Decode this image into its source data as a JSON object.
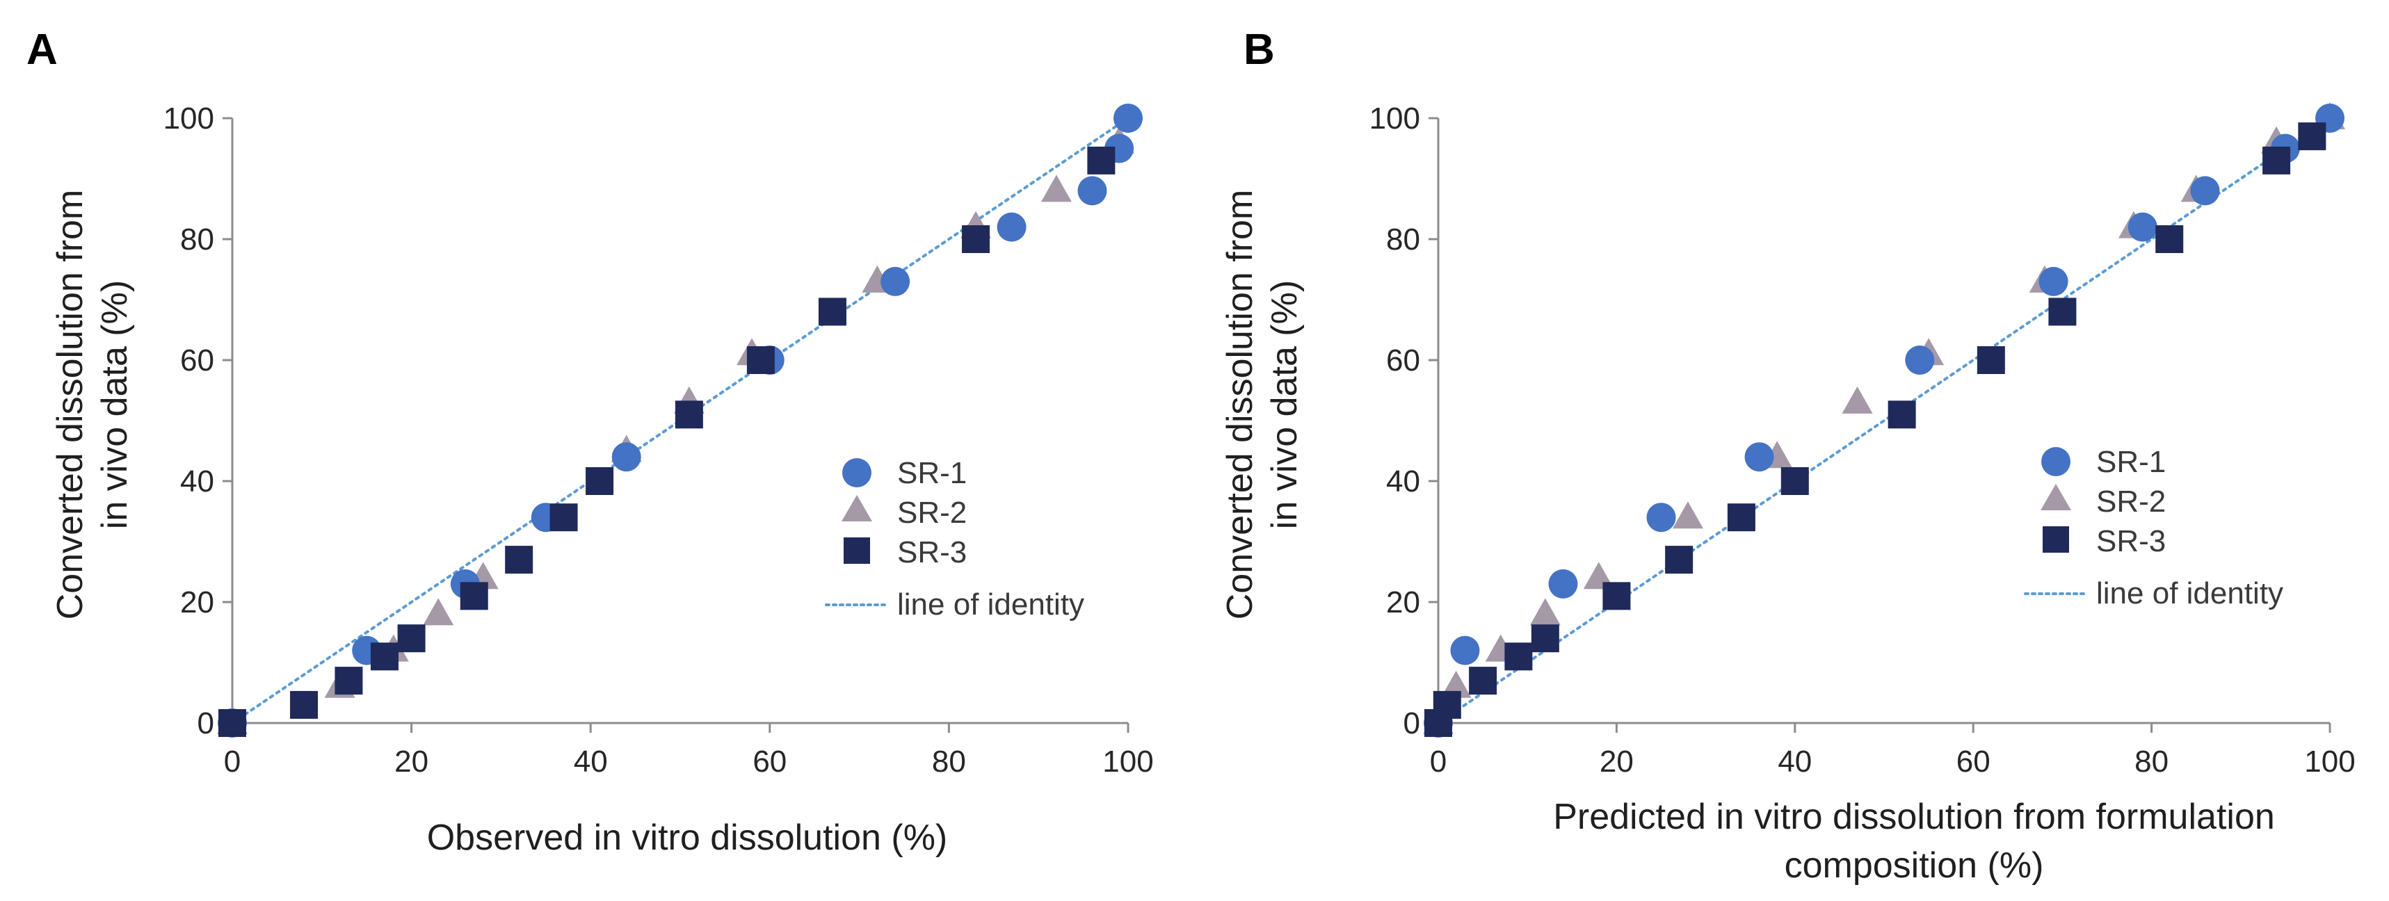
{
  "colors": {
    "sr1": "#4472c4",
    "sr2": "#a599a7",
    "sr3": "#1f2a5a",
    "identity": "#5b9bd5",
    "axis": "#8c8c8c"
  },
  "legend": {
    "items": [
      "SR-1",
      "SR-2",
      "SR-3",
      "line of identity"
    ]
  },
  "panels": [
    {
      "letter": "A",
      "chart_data": {
        "type": "scatter",
        "title": "",
        "xlabel": [
          "Observed in vitro dissolution (%)"
        ],
        "ylabel": [
          "Converted dissolution from",
          "in vivo data (%)"
        ],
        "xlim": [
          0,
          100
        ],
        "ylim": [
          0,
          100
        ],
        "xticks": [
          0,
          20,
          40,
          60,
          80,
          100
        ],
        "yticks": [
          0,
          20,
          40,
          60,
          80,
          100
        ],
        "legend_position": "right-middle",
        "grid": false,
        "series": [
          {
            "name": "SR-1",
            "marker": "circle",
            "x": [
              0,
              15,
              26,
              35,
              44,
              60,
              74,
              87,
              96,
              99,
              100
            ],
            "y": [
              0,
              12,
              23,
              34,
              44,
              60,
              73,
              82,
              88,
              95,
              100
            ]
          },
          {
            "name": "SR-2",
            "marker": "triangle",
            "x": [
              0,
              12,
              18,
              23,
              28,
              44,
              51,
              58,
              72,
              83,
              92,
              99
            ],
            "y": [
              0,
              6,
              12,
              18,
              24,
              45,
              53,
              61,
              73,
              82,
              88,
              96
            ]
          },
          {
            "name": "SR-3",
            "marker": "square",
            "x": [
              0,
              8,
              13,
              17,
              20,
              27,
              32,
              37,
              41,
              51,
              59,
              67,
              83,
              97
            ],
            "y": [
              0,
              3,
              7,
              11,
              14,
              21,
              27,
              34,
              40,
              51,
              60,
              68,
              80,
              93
            ]
          },
          {
            "name": "line of identity",
            "marker": "dotted-line",
            "x": [
              0,
              100
            ],
            "y": [
              0,
              100
            ]
          }
        ]
      }
    },
    {
      "letter": "B",
      "chart_data": {
        "type": "scatter",
        "title": "",
        "xlabel": [
          "Predicted in vitro dissolution from formulation",
          "composition (%)"
        ],
        "ylabel": [
          "Converted dissolution from",
          "in vivo data (%)"
        ],
        "xlim": [
          0,
          100
        ],
        "ylim": [
          0,
          100
        ],
        "xticks": [
          0,
          20,
          40,
          60,
          80,
          100
        ],
        "yticks": [
          0,
          20,
          40,
          60,
          80,
          100
        ],
        "legend_position": "right-middle",
        "grid": false,
        "series": [
          {
            "name": "SR-1",
            "marker": "circle",
            "x": [
              0,
              3,
              14,
              25,
              36,
              54,
              69,
              79,
              86,
              95,
              100
            ],
            "y": [
              0,
              12,
              23,
              34,
              44,
              60,
              73,
              82,
              88,
              95,
              100
            ]
          },
          {
            "name": "SR-2",
            "marker": "triangle",
            "x": [
              0,
              2,
              7,
              12,
              18,
              28,
              38,
              47,
              55,
              68,
              78,
              85,
              94,
              100
            ],
            "y": [
              0,
              6,
              12,
              18,
              24,
              34,
              44,
              53,
              61,
              73,
              82,
              88,
              96,
              100
            ]
          },
          {
            "name": "SR-3",
            "marker": "square",
            "x": [
              0,
              1,
              5,
              9,
              12,
              20,
              27,
              34,
              40,
              52,
              62,
              70,
              82,
              94,
              98
            ],
            "y": [
              0,
              3,
              7,
              11,
              14,
              21,
              27,
              34,
              40,
              51,
              60,
              68,
              80,
              93,
              97
            ]
          },
          {
            "name": "line of identity",
            "marker": "dotted-line",
            "x": [
              0,
              100
            ],
            "y": [
              0,
              100
            ]
          }
        ]
      }
    }
  ]
}
